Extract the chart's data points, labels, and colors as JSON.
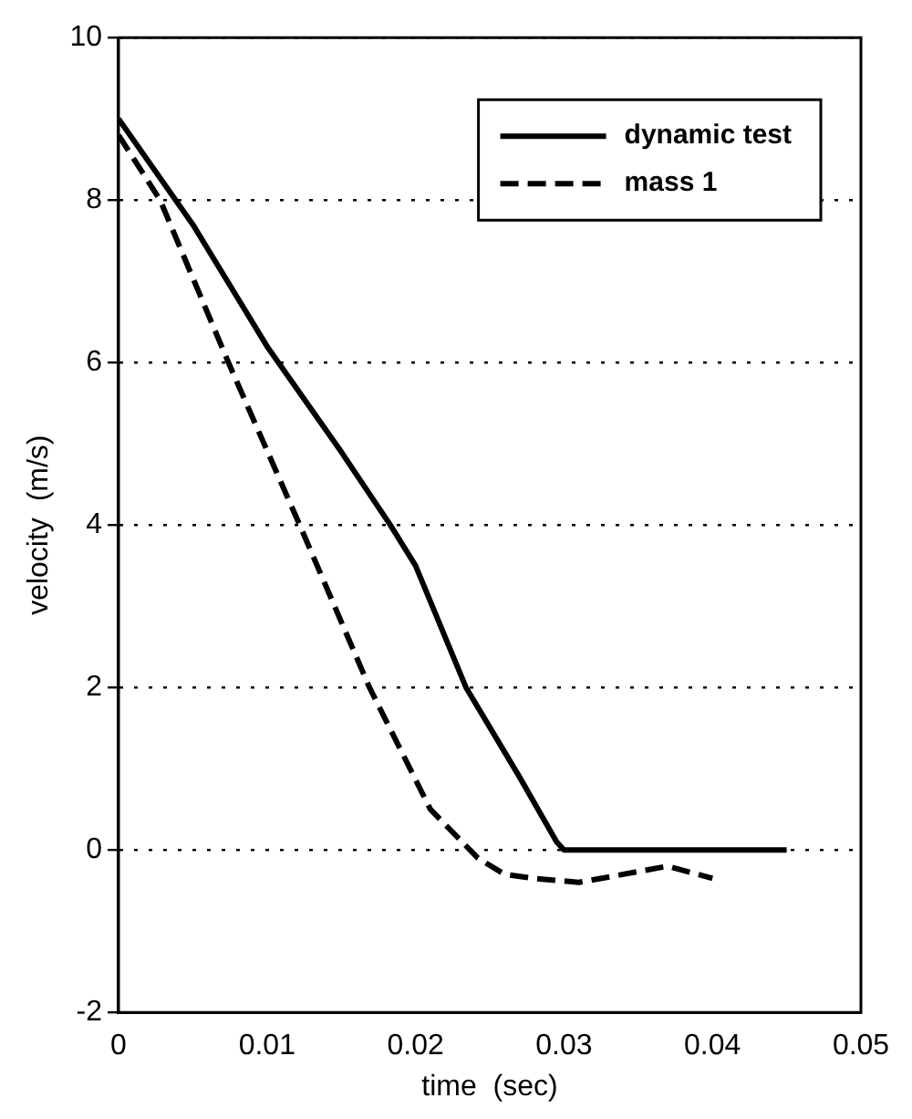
{
  "chart_data": {
    "type": "line",
    "xlabel": "time  (sec)",
    "ylabel": "velocity  (m/s)",
    "xlim": [
      0,
      0.05
    ],
    "xticks": [
      0,
      0.01,
      0.02,
      0.03,
      0.04,
      0.05
    ],
    "ylim": [
      -2,
      10
    ],
    "yticks": [
      -2,
      0,
      2,
      4,
      6,
      8,
      10
    ],
    "grid": "y",
    "legend": "top right",
    "marker": "none",
    "series": [
      {
        "name": "dynamic test",
        "color": "#000000",
        "line_style": "solid",
        "x": [
          0,
          0.005,
          0.01,
          0.015,
          0.0183,
          0.02,
          0.0234,
          0.027,
          0.0295,
          0.03,
          0.035,
          0.04,
          0.045
        ],
        "values": [
          9,
          7.7,
          6.2,
          4.9,
          4,
          3.5,
          2,
          0.9,
          0.1,
          0,
          0,
          0,
          0
        ]
      },
      {
        "name": "mass 1",
        "color": "#000000",
        "line_style": "dashed",
        "x": [
          0,
          0.0028,
          0.0074,
          0.0122,
          0.0169,
          0.021,
          0.0242,
          0.026,
          0.028,
          0.031,
          0.034,
          0.037,
          0.039,
          0.04
        ],
        "values": [
          8.8,
          8,
          6,
          4,
          2,
          0.5,
          -0.1,
          -0.3,
          -0.35,
          -0.4,
          -0.3,
          -0.2,
          -0.3,
          -0.35
        ]
      }
    ]
  }
}
